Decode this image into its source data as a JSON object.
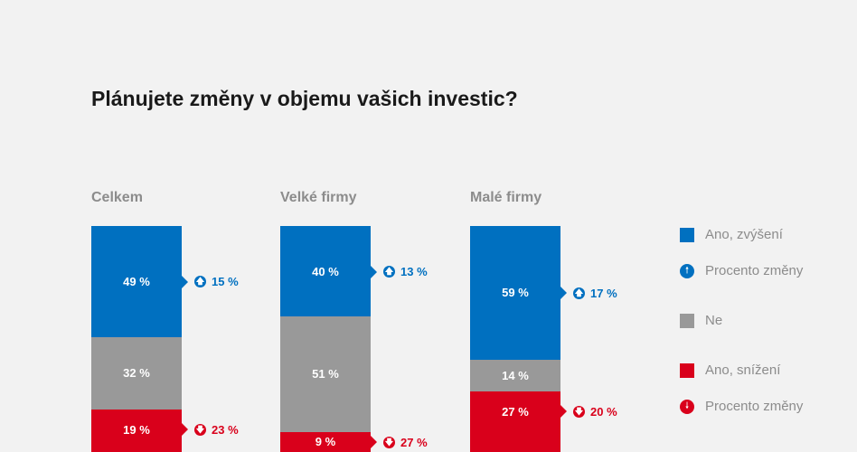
{
  "chart_data": {
    "type": "bar",
    "stacked": true,
    "title": "Plánujete změny v objemu vašich investic?",
    "categories": [
      "Celkem",
      "Velké firmy",
      "Malé firmy"
    ],
    "series": [
      {
        "name": "Ano, zvýšení",
        "values": [
          49,
          40,
          59
        ],
        "color": "#0070c0"
      },
      {
        "name": "Ne",
        "values": [
          32,
          51,
          14
        ],
        "color": "#999999"
      },
      {
        "name": "Ano, snížení",
        "values": [
          19,
          9,
          27
        ],
        "color": "#d9001b"
      }
    ],
    "changes": {
      "increase": {
        "name": "Procento změny",
        "values": [
          15,
          13,
          17
        ],
        "color": "#0070c0",
        "icon": "arrow-up-circle-icon"
      },
      "decrease": {
        "name": "Procento změny",
        "values": [
          23,
          27,
          20
        ],
        "color": "#d9001b",
        "icon": "arrow-down-circle-icon"
      }
    },
    "unit": "%",
    "legend_position": "right"
  }
}
